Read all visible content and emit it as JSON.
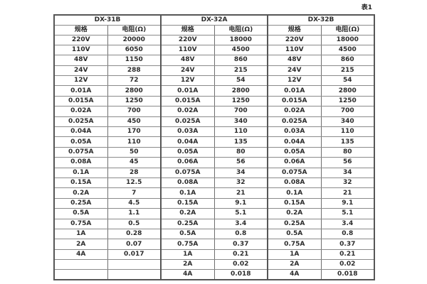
{
  "table": {
    "caption": "表1",
    "group_headers": [
      "DX-31B",
      "DX-32A",
      "DX-32B"
    ],
    "column_headers": [
      "规格",
      "电阻(Ω)",
      "规格",
      "电阻(Ω)",
      "规格",
      "电阻(Ω)"
    ],
    "rows": [
      [
        "220V",
        "20000",
        "220V",
        "18000",
        "220V",
        "18000"
      ],
      [
        "110V",
        "6050",
        "110V",
        "4500",
        "110V",
        "4500"
      ],
      [
        "48V",
        "1150",
        "48V",
        "860",
        "48V",
        "860"
      ],
      [
        "24V",
        "288",
        "24V",
        "215",
        "24V",
        "215"
      ],
      [
        "12V",
        "72",
        "12V",
        "54",
        "12V",
        "54"
      ],
      [
        "0.01A",
        "2800",
        "0.01A",
        "2800",
        "0.01A",
        "2800"
      ],
      [
        "0.015A",
        "1250",
        "0.015A",
        "1250",
        "0.015A",
        "1250"
      ],
      [
        "0.02A",
        "700",
        "0.02A",
        "700",
        "0.02A",
        "700"
      ],
      [
        "0.025A",
        "450",
        "0.025A",
        "340",
        "0.025A",
        "340"
      ],
      [
        "0.04A",
        "170",
        "0.03A",
        "110",
        "0.03A",
        "110"
      ],
      [
        "0.05A",
        "110",
        "0.04A",
        "135",
        "0.04A",
        "135"
      ],
      [
        "0.075A",
        "50",
        "0.05A",
        "80",
        "0.05A",
        "80"
      ],
      [
        "0.08A",
        "45",
        "0.06A",
        "56",
        "0.06A",
        "56"
      ],
      [
        "0.1A",
        "28",
        "0.075A",
        "34",
        "0.075A",
        "34"
      ],
      [
        "0.15A",
        "12.5",
        "0.08A",
        "32",
        "0.08A",
        "32"
      ],
      [
        "0.2A",
        "7",
        "0.1A",
        "21",
        "0.1A",
        "21"
      ],
      [
        "0.25A",
        "4.5",
        "0.15A",
        "9.1",
        "0.15A",
        "9.1"
      ],
      [
        "0.5A",
        "1.1",
        "0.2A",
        "5.1",
        "0.2A",
        "5.1"
      ],
      [
        "0.75A",
        "0.5",
        "0.25A",
        "3.4",
        "0.25A",
        "3.4"
      ],
      [
        "1A",
        "0.28",
        "0.5A",
        "0.8",
        "0.5A",
        "0.8"
      ],
      [
        "2A",
        "0.07",
        "0.75A",
        "0.37",
        "0.75A",
        "0.37"
      ],
      [
        "4A",
        "0.017",
        "1A",
        "0.21",
        "1A",
        "0.21"
      ],
      [
        "",
        "",
        "2A",
        "0.02",
        "2A",
        "0.02"
      ],
      [
        "",
        "",
        "4A",
        "0.018",
        "4A",
        "0.018"
      ]
    ]
  }
}
